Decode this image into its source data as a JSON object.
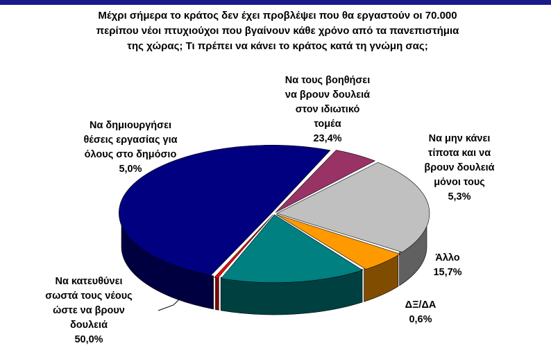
{
  "title_lines": [
    "Μέχρι σήμερα το κράτος δεν έχει προβλέψει που θα εργαστούν οι 70.000",
    "περίπου νέοι πτυχιούχοι που βγαίνουν κάθε χρόνο από τα πανεπιστήμια",
    "της χώρας; Τι πρέπει να κάνει το κράτος κατά τη γνώμη σας;"
  ],
  "chart_data": {
    "type": "pie",
    "title": "Μέχρι σήμερα το κράτος δεν έχει προβλέψει που θα εργαστούν οι 70.000 περίπου νέοι πτυχιούχοι που βγαίνουν κάθε χρόνο από τα πανεπιστήμια της χώρας; Τι πρέπει να κάνει το κράτος κατά τη γνώμη σας;",
    "slices": [
      {
        "label_lines": [
          "Να κατευθύνει",
          "σωστά τους νέους",
          "ώστε να βρουν",
          "δουλειά"
        ],
        "value": 50.0,
        "value_label": "50,0%",
        "color": "#000080",
        "side": "#000040"
      },
      {
        "label_lines": [
          "Να δημιουργήσει",
          "θέσεις εργασίας για",
          "όλους στο δημόσιο"
        ],
        "value": 5.0,
        "value_label": "5,0%",
        "color": "#993366",
        "side": "#4d1a33"
      },
      {
        "label_lines": [
          "Να τους βοηθήσει",
          "να βρουν δουλειά",
          "στον ιδιωτικό",
          "τομέα"
        ],
        "value": 23.4,
        "value_label": "23,4%",
        "color": "#c0c0c0",
        "side": "#606060"
      },
      {
        "label_lines": [
          "Να μην κάνει",
          "τίποτα και να",
          "βρουν δουλειά",
          "μόνοι τους"
        ],
        "value": 5.3,
        "value_label": "5,3%",
        "color": "#ff9900",
        "side": "#804d00"
      },
      {
        "label_lines": [
          "Άλλο"
        ],
        "value": 15.7,
        "value_label": "15,7%",
        "color": "#008080",
        "side": "#004040"
      },
      {
        "label_lines": [
          "ΔΞ/ΔΑ"
        ],
        "value": 0.6,
        "value_label": "0,6%",
        "color": "#ff0000",
        "side": "#800000"
      }
    ]
  }
}
